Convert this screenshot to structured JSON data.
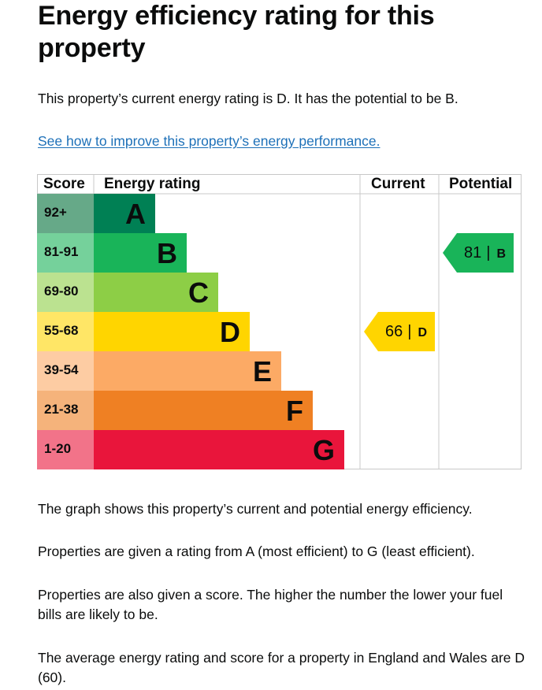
{
  "heading": "Energy efficiency rating for this property",
  "intro": "This property’s current energy rating is D. It has the potential to be B.",
  "improve_link": "See how to improve this property’s energy performance.",
  "chart_headers": {
    "score": "Score",
    "rating": "Energy rating",
    "current": "Current",
    "potential": "Potential"
  },
  "bands": [
    {
      "score": "92+",
      "letter": "A",
      "color": "#008054",
      "score_bg": "#66a988"
    },
    {
      "score": "81-91",
      "letter": "B",
      "color": "#19b459",
      "score_bg": "#75d19b"
    },
    {
      "score": "69-80",
      "letter": "C",
      "color": "#8dce46",
      "score_bg": "#bbe290"
    },
    {
      "score": "55-68",
      "letter": "D",
      "color": "#ffd500",
      "score_bg": "#ffe666"
    },
    {
      "score": "39-54",
      "letter": "E",
      "color": "#fcaa65",
      "score_bg": "#fdcca3"
    },
    {
      "score": "21-38",
      "letter": "F",
      "color": "#ef8023",
      "score_bg": "#f5b37b"
    },
    {
      "score": "1-20",
      "letter": "G",
      "color": "#e9153b",
      "score_bg": "#f27389"
    }
  ],
  "current": {
    "score": "66",
    "letter": "D",
    "color": "#ffd500"
  },
  "potential": {
    "score": "81",
    "letter": "B",
    "color": "#19b459"
  },
  "separator": "|",
  "para1": "The graph shows this property’s current and potential energy efficiency.",
  "para2": "Properties are given a rating from A (most efficient) to G (least efficient).",
  "para3": "Properties are also given a score. The higher the number the lower your fuel bills are likely to be.",
  "para4": "The average energy rating and score for a property in England and Wales are D (60)."
}
